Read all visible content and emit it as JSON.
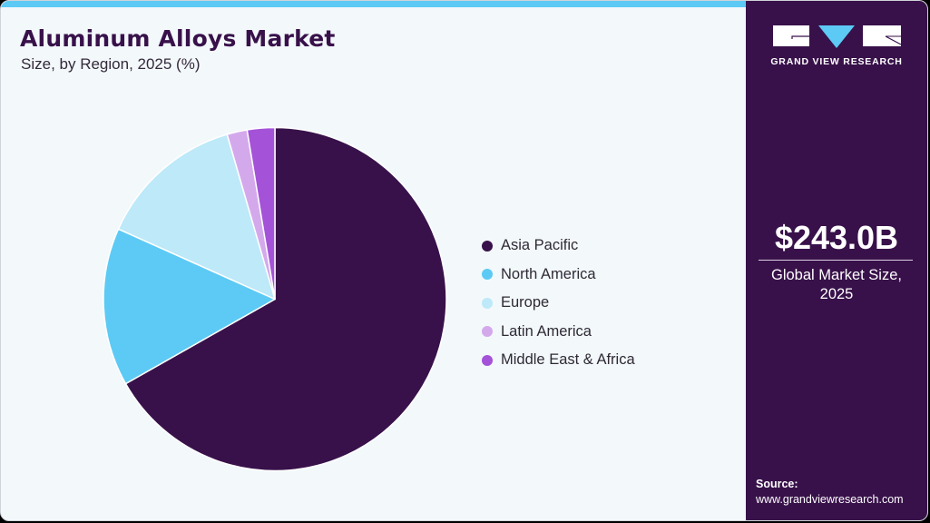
{
  "header": {
    "title": "Aluminum Alloys Market",
    "subtitle": "Size, by Region, 2025 (%)"
  },
  "sidebar": {
    "logo_text": "GRAND VIEW RESEARCH",
    "market_value": "$243.0B",
    "market_label_line1": "Global Market Size,",
    "market_label_line2": "2025",
    "source_label": "Source:",
    "source_url": "www.grandviewresearch.com"
  },
  "colors": {
    "brand_dark": "#38114a",
    "accent_blue": "#5ccaf5",
    "background": "#f3f8fb"
  },
  "legend": [
    {
      "label": "Asia Pacific",
      "color": "#38114a"
    },
    {
      "label": "North America",
      "color": "#5ccaf5"
    },
    {
      "label": "Europe",
      "color": "#bde9f9"
    },
    {
      "label": "Latin America",
      "color": "#d4a9ec"
    },
    {
      "label": "Middle East & Africa",
      "color": "#a452d8"
    }
  ],
  "chart_data": {
    "type": "pie",
    "title": "Aluminum Alloys Market",
    "subtitle": "Size, by Region, 2025 (%)",
    "categories": [
      "Asia Pacific",
      "North America",
      "Europe",
      "Latin America",
      "Middle East & Africa"
    ],
    "values": [
      66.8,
      14.9,
      13.8,
      1.9,
      2.6
    ],
    "colors": [
      "#38114a",
      "#5ccaf5",
      "#bde9f9",
      "#d4a9ec",
      "#a452d8"
    ],
    "start_angle": "12 o'clock, clockwise",
    "legend_position": "right",
    "annotation": "$243.0B Global Market Size, 2025"
  }
}
